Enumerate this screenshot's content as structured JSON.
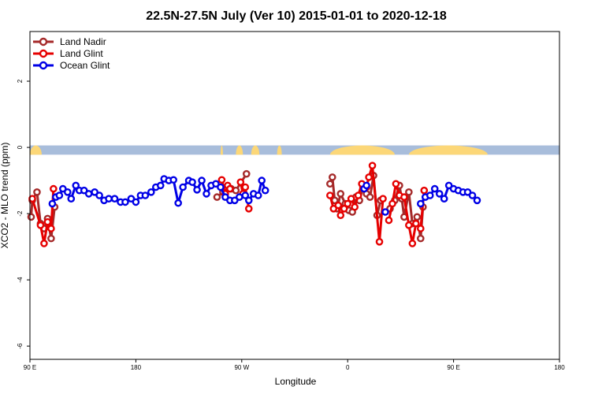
{
  "chart_data": {
    "type": "line",
    "title": "22.5N-27.5N July (Ver 10)   2015-01-01 to 2020-12-18",
    "xlabel": "Longitude",
    "ylabel": "XCO2 - MLO trend (ppm)",
    "xlim": [
      90,
      450
    ],
    "ylim": [
      -6.4,
      3.5
    ],
    "xticks": [
      {
        "value": 90,
        "label": "90 E"
      },
      {
        "value": 180,
        "label": "180"
      },
      {
        "value": 270,
        "label": "90 W"
      },
      {
        "value": 360,
        "label": "0"
      },
      {
        "value": 450,
        "label": "90 E"
      },
      {
        "value": 540,
        "label": "180"
      }
    ],
    "yticks": [
      {
        "value": 2,
        "label": "2"
      },
      {
        "value": 0,
        "label": "0"
      },
      {
        "value": -2,
        "label": "-2"
      },
      {
        "value": -4,
        "label": "-4"
      },
      {
        "value": -6,
        "label": "-6"
      }
    ],
    "x_axis_start": 90,
    "x_axis_end": 540,
    "grid": false,
    "legend_position": "top-left",
    "land_strip": {
      "y_top": 0.06,
      "y_bottom": -0.22,
      "ocean_color": "#a8bddb",
      "land_color": "#fcd778",
      "land_spans": [
        [
          90,
          100
        ],
        [
          252,
          254
        ],
        [
          265,
          271
        ],
        [
          278,
          285
        ],
        [
          300,
          304
        ],
        [
          345,
          400
        ],
        [
          412,
          479
        ]
      ]
    },
    "series": [
      {
        "name": "Land Nadir",
        "color": "#a52a2a",
        "segments": [
          [
            [
              91,
              -2.1
            ],
            [
              92,
              -1.6
            ],
            [
              96,
              -1.35
            ],
            [
              99,
              -2.3
            ],
            [
              102,
              -2.45
            ],
            [
              105,
              -2.15
            ],
            [
              108,
              -2.75
            ],
            [
              111,
              -1.8
            ]
          ],
          [
            [
              249,
              -1.5
            ],
            [
              254,
              -1.35
            ],
            [
              261,
              -1.25
            ],
            [
              265,
              -1.3
            ],
            [
              274,
              -0.8
            ]
          ],
          [
            [
              345,
              -1.1
            ],
            [
              347,
              -0.9
            ],
            [
              349,
              -1.6
            ],
            [
              351,
              -1.85
            ],
            [
              354,
              -1.4
            ],
            [
              358,
              -1.7
            ],
            [
              361,
              -1.9
            ],
            [
              364,
              -1.95
            ],
            [
              367,
              -1.5
            ],
            [
              370,
              -1.6
            ],
            [
              373,
              -1.2
            ],
            [
              376,
              -1.4
            ],
            [
              379,
              -1.5
            ],
            [
              382,
              -0.85
            ],
            [
              385,
              -2.05
            ],
            [
              388,
              -1.6
            ]
          ],
          [
            [
              396,
              -1.85
            ],
            [
              400,
              -1.6
            ],
            [
              404,
              -1.15
            ],
            [
              406,
              -1.55
            ],
            [
              408,
              -2.1
            ],
            [
              412,
              -1.35
            ],
            [
              415,
              -2.3
            ],
            [
              419,
              -2.1
            ],
            [
              422,
              -2.75
            ],
            [
              424,
              -1.8
            ]
          ]
        ]
      },
      {
        "name": "Land Glint",
        "color": "#e60000",
        "segments": [
          [
            [
              92,
              -1.55
            ],
            [
              99,
              -2.35
            ],
            [
              102,
              -2.9
            ],
            [
              105,
              -2.25
            ],
            [
              108,
              -2.45
            ],
            [
              110,
              -1.25
            ]
          ],
          [
            [
              253,
              -0.98
            ],
            [
              256,
              -1.4
            ],
            [
              258,
              -1.15
            ],
            [
              260,
              -1.25
            ]
          ],
          [
            [
              269,
              -1.05
            ],
            [
              271,
              -1.4
            ],
            [
              273,
              -1.2
            ],
            [
              276,
              -1.85
            ]
          ],
          [
            [
              345,
              -1.45
            ],
            [
              348,
              -1.85
            ],
            [
              352,
              -1.75
            ],
            [
              354,
              -2.05
            ],
            [
              357,
              -1.85
            ],
            [
              360,
              -1.7
            ],
            [
              363,
              -1.55
            ],
            [
              366,
              -1.8
            ],
            [
              369,
              -1.45
            ],
            [
              372,
              -1.1
            ],
            [
              376,
              -1.2
            ],
            [
              378,
              -0.9
            ],
            [
              381,
              -0.55
            ],
            [
              387,
              -2.85
            ],
            [
              390,
              -1.55
            ]
          ],
          [
            [
              395,
              -2.2
            ],
            [
              398,
              -1.7
            ],
            [
              401,
              -1.1
            ],
            [
              404,
              -1.45
            ],
            [
              408,
              -1.5
            ],
            [
              412,
              -2.35
            ],
            [
              415,
              -2.9
            ],
            [
              418,
              -2.3
            ],
            [
              422,
              -2.45
            ],
            [
              425,
              -1.3
            ]
          ]
        ]
      },
      {
        "name": "Ocean Glint",
        "color": "#0000e6",
        "segments": [
          [
            [
              109,
              -1.7
            ],
            [
              112,
              -1.5
            ],
            [
              115,
              -1.45
            ],
            [
              118,
              -1.25
            ],
            [
              122,
              -1.35
            ],
            [
              125,
              -1.55
            ],
            [
              129,
              -1.15
            ],
            [
              132,
              -1.3
            ],
            [
              136,
              -1.3
            ],
            [
              140,
              -1.4
            ],
            [
              145,
              -1.35
            ],
            [
              149,
              -1.45
            ],
            [
              153,
              -1.6
            ],
            [
              157,
              -1.55
            ],
            [
              162,
              -1.55
            ],
            [
              167,
              -1.65
            ],
            [
              171,
              -1.65
            ],
            [
              176,
              -1.55
            ],
            [
              180,
              -1.65
            ],
            [
              184,
              -1.45
            ],
            [
              188,
              -1.45
            ],
            [
              193,
              -1.35
            ],
            [
              197,
              -1.2
            ],
            [
              201,
              -1.15
            ],
            [
              204,
              -0.95
            ],
            [
              208,
              -1.0
            ],
            [
              212,
              -0.98
            ],
            [
              216,
              -1.68
            ],
            [
              220,
              -1.2
            ],
            [
              225,
              -1.0
            ],
            [
              228,
              -1.05
            ],
            [
              232,
              -1.28
            ],
            [
              236,
              -1.0
            ],
            [
              240,
              -1.4
            ],
            [
              244,
              -1.15
            ],
            [
              248,
              -1.1
            ],
            [
              252,
              -1.2
            ],
            [
              256,
              -1.5
            ],
            [
              260,
              -1.6
            ],
            [
              264,
              -1.6
            ],
            [
              268,
              -1.5
            ],
            [
              273,
              -1.45
            ],
            [
              276,
              -1.6
            ],
            [
              280,
              -1.4
            ],
            [
              284,
              -1.45
            ],
            [
              287,
              -1.0
            ],
            [
              290,
              -1.3
            ]
          ],
          [
            [
              374,
              -1.25
            ],
            [
              376,
              -1.15
            ]
          ],
          [
            [
              392,
              -1.95
            ]
          ],
          [
            [
              422,
              -1.7
            ],
            [
              426,
              -1.5
            ],
            [
              430,
              -1.45
            ],
            [
              434,
              -1.25
            ],
            [
              438,
              -1.4
            ],
            [
              442,
              -1.55
            ],
            [
              446,
              -1.15
            ],
            [
              450,
              -1.25
            ],
            [
              454,
              -1.3
            ],
            [
              458,
              -1.35
            ],
            [
              462,
              -1.35
            ],
            [
              466,
              -1.45
            ],
            [
              470,
              -1.6
            ]
          ]
        ]
      }
    ]
  }
}
